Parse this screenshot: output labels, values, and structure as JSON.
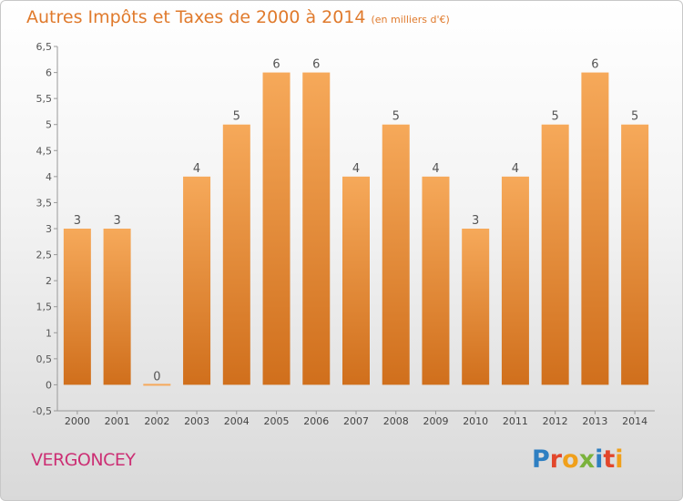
{
  "title": "Autres Impôts et Taxes de 2000 à 2014",
  "title_unit": "(en milliers d'€)",
  "place_name": "VERGONCEY",
  "brand": "Proxiti",
  "colors": {
    "title": "#e07a2c",
    "place": "#cc2f74",
    "bar_top": "#f6a95a",
    "bar_bottom": "#d06f1c",
    "logo": [
      "#2e7fc2",
      "#e2462b",
      "#f0a01b",
      "#7ab23c",
      "#2e7fc2",
      "#e2462b",
      "#f0a01b"
    ]
  },
  "chart_data": {
    "type": "bar",
    "categories": [
      "2000",
      "2001",
      "2002",
      "2003",
      "2004",
      "2005",
      "2006",
      "2007",
      "2008",
      "2009",
      "2010",
      "2011",
      "2012",
      "2013",
      "2014"
    ],
    "values": [
      3,
      3,
      0,
      4,
      5,
      6,
      6,
      4,
      5,
      4,
      3,
      4,
      5,
      6,
      5
    ],
    "value_labels": [
      "3",
      "3",
      "0",
      "4",
      "5",
      "6",
      "6",
      "4",
      "5",
      "4",
      "3",
      "4",
      "5",
      "6",
      "5"
    ],
    "ylim": [
      -0.5,
      6.5
    ],
    "yticks": [
      -0.5,
      0,
      0.5,
      1,
      1.5,
      2,
      2.5,
      3,
      3.5,
      4,
      4.5,
      5,
      5.5,
      6,
      6.5
    ],
    "ytick_labels": [
      "-0,5",
      "0",
      "0,5",
      "1",
      "1,5",
      "2",
      "2,5",
      "3",
      "3,5",
      "4",
      "4,5",
      "5",
      "5,5",
      "6",
      "6,5"
    ],
    "grid": false,
    "title": "Autres Impôts et Taxes de 2000 à 2014",
    "xlabel": "",
    "ylabel": ""
  }
}
